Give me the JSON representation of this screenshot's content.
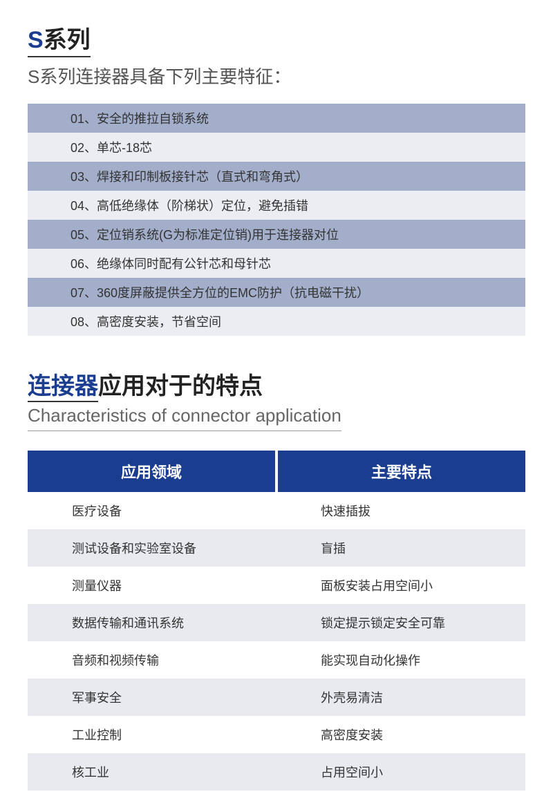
{
  "colors": {
    "accent": "#1a3d8f",
    "table_header_bg": "#1a3d8f",
    "stripe_dark": "#a3aecb",
    "stripe_light": "#ecedf2",
    "app_row_odd": "#ffffff",
    "app_row_even": "#e8eaf0"
  },
  "series": {
    "title_accent": "S",
    "title_rest": "系列",
    "subtitle": "S系列连接器具备下列主要特征：",
    "features": [
      "01、安全的推拉自锁系统",
      "02、单芯-18芯",
      "03、焊接和印制板接针芯（直式和弯角式）",
      "04、高低绝缘体（阶梯状）定位，避免插错",
      "05、定位销系统(G为标准定位销)用于连接器对位",
      "06、绝缘体同时配有公针芯和母针芯",
      "07、360度屏蔽提供全方位的EMC防护（抗电磁干扰）",
      "08、高密度安装，节省空间"
    ]
  },
  "app": {
    "title_accent": "连接器",
    "title_rest": "应用对于的特点",
    "subtitle_en": "Characteristics of connector application",
    "headers": [
      "应用领域",
      "主要特点"
    ],
    "rows": [
      [
        "医疗设备",
        "快速插拔"
      ],
      [
        "测试设备和实验室设备",
        "盲插"
      ],
      [
        "测量仪器",
        "面板安装占用空间小"
      ],
      [
        "数据传输和通讯系统",
        "锁定提示锁定安全可靠"
      ],
      [
        "音频和视频传输",
        "能实现自动化操作"
      ],
      [
        "军事安全",
        "外壳易清洁"
      ],
      [
        "工业控制",
        "高密度安装"
      ],
      [
        "核工业",
        "占用空间小"
      ]
    ]
  }
}
